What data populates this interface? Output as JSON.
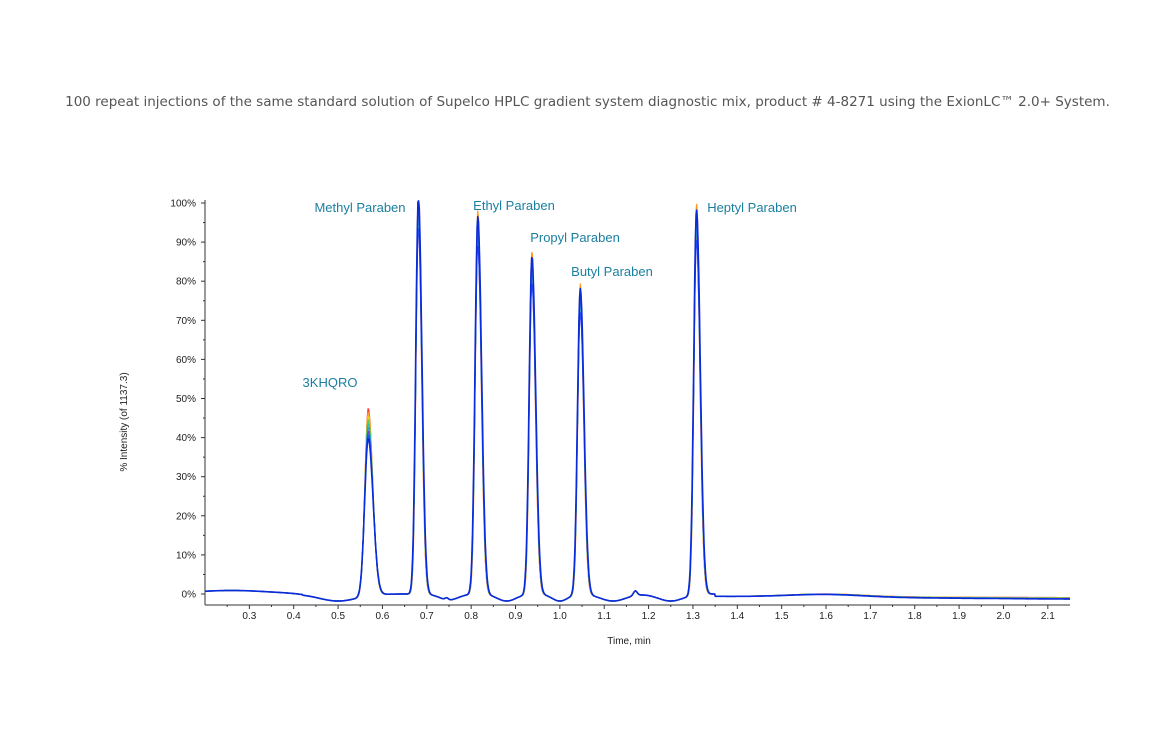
{
  "caption": "100 repeat injections of the same standard solution of Supelco HPLC gradient system diagnostic mix, product # 4-8271 using the ExionLC™ 2.0+ System.",
  "chart_data": {
    "type": "line",
    "title": "",
    "xlabel": "Time, min",
    "ylabel": "% Intensity (of 1137.3)",
    "xlim": [
      0.2,
      2.15
    ],
    "ylim": [
      -2,
      100
    ],
    "x_ticks": [
      "0.3",
      "0.4",
      "0.5",
      "0.6",
      "0.7",
      "0.8",
      "0.9",
      "1.0",
      "1.1",
      "1.2",
      "1.3",
      "1.4",
      "1.5",
      "1.6",
      "1.7",
      "1.8",
      "1.9",
      "2.0",
      "2.1"
    ],
    "y_ticks": [
      "0%",
      "10%",
      "20%",
      "30%",
      "40%",
      "50%",
      "60%",
      "70%",
      "80%",
      "90%",
      "100%"
    ],
    "grid": false,
    "peaks": [
      {
        "name": "3KHQRO",
        "rt": 0.568,
        "height": 48,
        "width": 0.0075
      },
      {
        "name": "Methyl Paraben",
        "rt": 0.681,
        "height": 100,
        "width": 0.0055
      },
      {
        "name": "Ethyl Paraben",
        "rt": 0.815,
        "height": 95,
        "width": 0.0058
      },
      {
        "name": "Propyl Paraben",
        "rt": 0.937,
        "height": 85,
        "width": 0.0058
      },
      {
        "name": "Butyl Paraben",
        "rt": 1.046,
        "height": 77,
        "width": 0.0058
      },
      {
        "name": "Heptyl Paraben",
        "rt": 1.308,
        "height": 97,
        "width": 0.0058
      }
    ],
    "series_colors": [
      "#ff3b3b",
      "#ff9a1f",
      "#e6d200",
      "#57d23a",
      "#21c6a5",
      "#1aa6e0",
      "#6d3fd8",
      "#1f49ff",
      "#0a2bd8"
    ],
    "label_color": "#1a7fa0"
  }
}
